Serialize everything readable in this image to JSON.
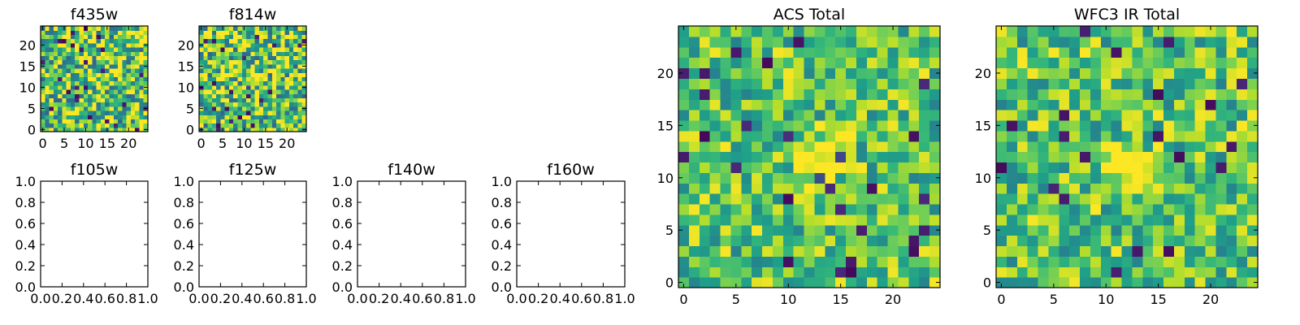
{
  "colormap": "viridis",
  "chart_data": [
    {
      "type": "heatmap",
      "title": "f435w",
      "grid": "25x25",
      "xlim": [
        0,
        24
      ],
      "ylim": [
        0,
        24
      ],
      "xticks": [
        0,
        5,
        10,
        15,
        20
      ],
      "yticks": [
        0,
        5,
        10,
        15,
        20
      ],
      "grid_size": 25,
      "peak": [
        12,
        12
      ],
      "noise": 0.8,
      "peak_strength": 0.15,
      "seed": 11
    },
    {
      "type": "heatmap",
      "title": "f814w",
      "grid": "25x25",
      "xlim": [
        0,
        24
      ],
      "ylim": [
        0,
        24
      ],
      "xticks": [
        0,
        5,
        10,
        15,
        20
      ],
      "yticks": [
        0,
        5,
        10,
        15,
        20
      ],
      "grid_size": 25,
      "peak": [
        12,
        12
      ],
      "noise": 0.8,
      "peak_strength": 0.35,
      "seed": 23
    },
    {
      "type": "empty",
      "title": "f105w",
      "xlim": [
        0.0,
        1.0
      ],
      "ylim": [
        0.0,
        1.0
      ],
      "xticks": [
        "0.0",
        "0.2",
        "0.4",
        "0.6",
        "0.8",
        "1.0"
      ],
      "yticks": [
        "0.0",
        "0.2",
        "0.4",
        "0.6",
        "0.8",
        "1.0"
      ]
    },
    {
      "type": "empty",
      "title": "f125w",
      "xlim": [
        0.0,
        1.0
      ],
      "ylim": [
        0.0,
        1.0
      ],
      "xticks": [
        "0.0",
        "0.2",
        "0.4",
        "0.6",
        "0.8",
        "1.0"
      ],
      "yticks": [
        "0.0",
        "0.2",
        "0.4",
        "0.6",
        "0.8",
        "1.0"
      ]
    },
    {
      "type": "empty",
      "title": "f140w",
      "xlim": [
        0.0,
        1.0
      ],
      "ylim": [
        0.0,
        1.0
      ],
      "xticks": [
        "0.0",
        "0.2",
        "0.4",
        "0.6",
        "0.8",
        "1.0"
      ],
      "yticks": [
        "0.0",
        "0.2",
        "0.4",
        "0.6",
        "0.8",
        "1.0"
      ]
    },
    {
      "type": "empty",
      "title": "f160w",
      "xlim": [
        0.0,
        1.0
      ],
      "ylim": [
        0.0,
        1.0
      ],
      "xticks": [
        "0.0",
        "0.2",
        "0.4",
        "0.6",
        "0.8",
        "1.0"
      ],
      "yticks": [
        "0.0",
        "0.2",
        "0.4",
        "0.6",
        "0.8",
        "1.0"
      ]
    },
    {
      "type": "heatmap",
      "title": "ACS Total",
      "grid": "25x25",
      "xlim": [
        0,
        24
      ],
      "ylim": [
        0,
        24
      ],
      "xticks": [
        0,
        5,
        10,
        15,
        20
      ],
      "yticks": [
        0,
        5,
        10,
        15,
        20
      ],
      "grid_size": 25,
      "peak": [
        13,
        12
      ],
      "noise": 0.55,
      "peak_strength": 0.45,
      "seed": 37
    },
    {
      "type": "heatmap",
      "title": "WFC3 IR Total",
      "grid": "25x25",
      "xlim": [
        0,
        24
      ],
      "ylim": [
        0,
        24
      ],
      "xticks": [
        0,
        5,
        10,
        15,
        20
      ],
      "yticks": [
        0,
        5,
        10,
        15,
        20
      ],
      "grid_size": 25,
      "peak": [
        12,
        11
      ],
      "noise": 0.55,
      "peak_strength": 0.45,
      "seed": 53
    }
  ]
}
